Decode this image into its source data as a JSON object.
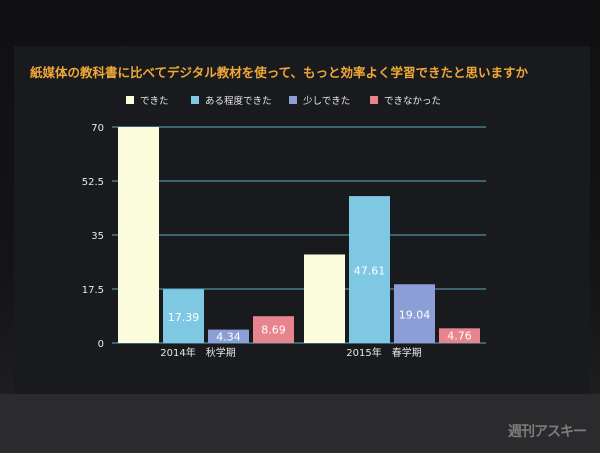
{
  "watermark": "週刊アスキー",
  "colors": {
    "title": "#f0a838",
    "grid": "#6fc4df",
    "text": "#e6e6e6"
  },
  "chart_data": {
    "type": "bar",
    "title": "紙媒体の教科書に比べてデジタル教材を使って、もっと効率よく学習できたと思いますか",
    "categories": [
      "2014年　秋学期",
      "2015年　春学期"
    ],
    "series": [
      {
        "name": "できた",
        "color": "#fbfcdc",
        "values": [
          70,
          28.69
        ],
        "labels": [
          "",
          ""
        ]
      },
      {
        "name": "ある程度できた",
        "color": "#7fc8e4",
        "values": [
          17.39,
          47.61
        ],
        "labels": [
          "17.39",
          "47.61"
        ]
      },
      {
        "name": "少しできた",
        "color": "#8b9ed6",
        "values": [
          4.34,
          19.04
        ],
        "labels": [
          "4.34",
          "19.04"
        ]
      },
      {
        "name": "できなかった",
        "color": "#e8848d",
        "values": [
          8.69,
          4.76
        ],
        "labels": [
          "8.69",
          "4.76"
        ]
      }
    ],
    "yticks": [
      0,
      17.5,
      35,
      52.5,
      70
    ],
    "ytick_labels": [
      "0",
      "17.5",
      "35",
      "52.5",
      "70"
    ],
    "ylim": [
      0,
      70
    ],
    "grid": true,
    "legend": "top"
  }
}
